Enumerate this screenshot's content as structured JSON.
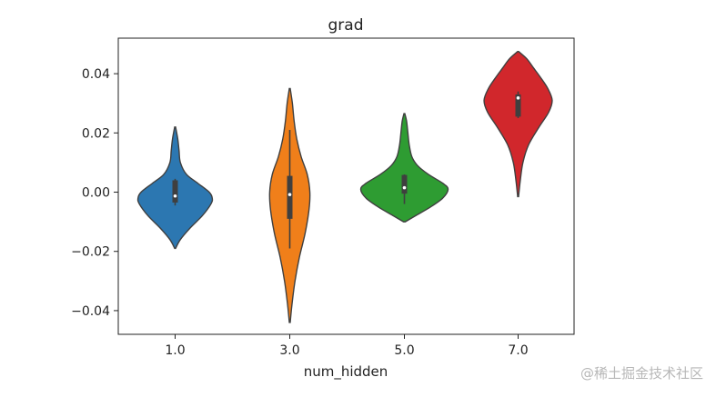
{
  "chart_data": {
    "type": "violin",
    "title": "grad",
    "xlabel": "num_hidden",
    "ylabel": "",
    "categories": [
      "1.0",
      "3.0",
      "5.0",
      "7.0"
    ],
    "colors": [
      "#2c77b1",
      "#f07f1a",
      "#2e9c32",
      "#d1272c"
    ],
    "ylim": [
      -0.048,
      0.052
    ],
    "yticks": [
      -0.04,
      -0.02,
      0.0,
      0.02,
      0.04
    ],
    "ytick_labels": [
      "−0.04",
      "−0.02",
      "0.00",
      "0.02",
      "0.04"
    ],
    "grid": false,
    "violins": [
      {
        "category": "1.0",
        "min": -0.019,
        "max": 0.022,
        "q1": -0.0035,
        "median": -0.0013,
        "q3": 0.004,
        "whisker_low": -0.0045,
        "whisker_high": 0.0045,
        "density": [
          [
            -0.019,
            0.01
          ],
          [
            -0.016,
            0.12
          ],
          [
            -0.012,
            0.35
          ],
          [
            -0.008,
            0.62
          ],
          [
            -0.004,
            0.82
          ],
          [
            -0.002,
            0.85
          ],
          [
            0.0,
            0.78
          ],
          [
            0.003,
            0.52
          ],
          [
            0.006,
            0.26
          ],
          [
            0.01,
            0.12
          ],
          [
            0.014,
            0.09
          ],
          [
            0.018,
            0.06
          ],
          [
            0.022,
            0.01
          ]
        ]
      },
      {
        "category": "3.0",
        "min": -0.044,
        "max": 0.035,
        "q1": -0.009,
        "median": -0.0008,
        "q3": 0.0055,
        "whisker_low": -0.019,
        "whisker_high": 0.021,
        "density": [
          [
            -0.044,
            0.01
          ],
          [
            -0.038,
            0.05
          ],
          [
            -0.03,
            0.12
          ],
          [
            -0.022,
            0.22
          ],
          [
            -0.014,
            0.35
          ],
          [
            -0.006,
            0.44
          ],
          [
            0.0,
            0.46
          ],
          [
            0.006,
            0.4
          ],
          [
            0.012,
            0.26
          ],
          [
            0.018,
            0.16
          ],
          [
            0.024,
            0.1
          ],
          [
            0.03,
            0.06
          ],
          [
            0.035,
            0.01
          ]
        ]
      },
      {
        "category": "5.0",
        "min": -0.01,
        "max": 0.0265,
        "q1": -0.0005,
        "median": 0.0015,
        "q3": 0.0058,
        "whisker_low": -0.004,
        "whisker_high": 0.006,
        "density": [
          [
            -0.01,
            0.02
          ],
          [
            -0.008,
            0.25
          ],
          [
            -0.005,
            0.6
          ],
          [
            -0.002,
            0.88
          ],
          [
            0.001,
            1.0
          ],
          [
            0.003,
            0.88
          ],
          [
            0.006,
            0.55
          ],
          [
            0.009,
            0.3
          ],
          [
            0.012,
            0.17
          ],
          [
            0.016,
            0.11
          ],
          [
            0.02,
            0.08
          ],
          [
            0.024,
            0.05
          ],
          [
            0.0265,
            0.01
          ]
        ]
      },
      {
        "category": "7.0",
        "min": -0.0015,
        "max": 0.0475,
        "q1": 0.0255,
        "median": 0.0318,
        "q3": 0.033,
        "whisker_low": 0.025,
        "whisker_high": 0.034,
        "density": [
          [
            -0.0015,
            0.01
          ],
          [
            0.004,
            0.05
          ],
          [
            0.01,
            0.11
          ],
          [
            0.016,
            0.24
          ],
          [
            0.022,
            0.48
          ],
          [
            0.027,
            0.7
          ],
          [
            0.031,
            0.78
          ],
          [
            0.035,
            0.68
          ],
          [
            0.039,
            0.5
          ],
          [
            0.042,
            0.35
          ],
          [
            0.045,
            0.2
          ],
          [
            0.0475,
            0.01
          ]
        ]
      }
    ]
  },
  "watermark": "@稀土掘金技术社区"
}
